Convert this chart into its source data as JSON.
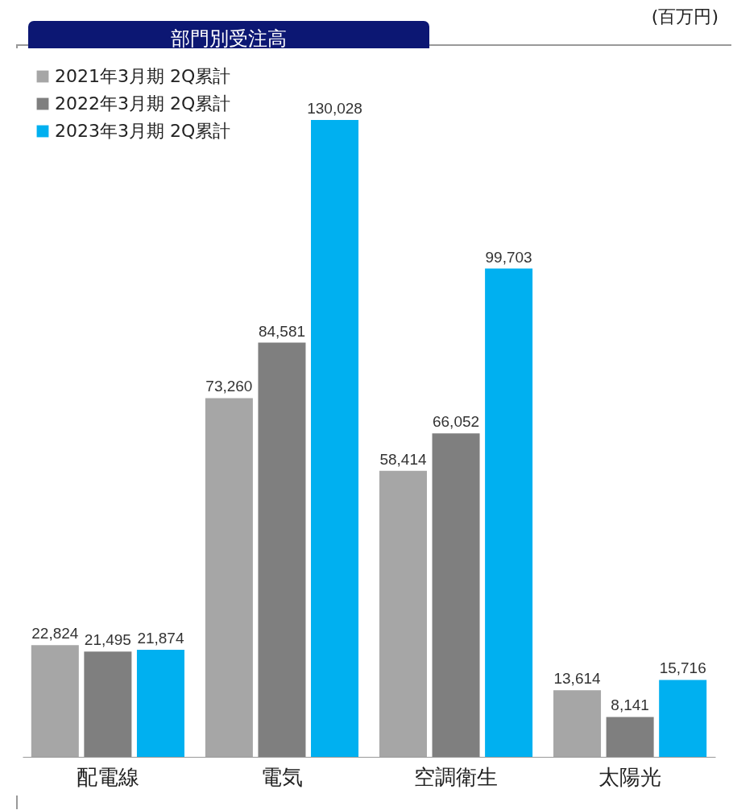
{
  "chart_data": {
    "type": "bar",
    "title": "部門別受注高",
    "annotations": [
      "(百万円)"
    ],
    "categories": [
      "配電線",
      "電気",
      "空調衛生",
      "太陽光"
    ],
    "series": [
      {
        "name": "2021年3月期 2Q累計",
        "color": "#a6a6a6",
        "values": [
          22824,
          73260,
          58414,
          13614
        ],
        "value_labels": [
          "22,824",
          "73,260",
          "58,414",
          "13,614"
        ]
      },
      {
        "name": "2022年3月期 2Q累計",
        "color": "#7f7f7f",
        "values": [
          21495,
          84581,
          66052,
          8141
        ],
        "value_labels": [
          "21,495",
          "84,581",
          "66,052",
          "8,141"
        ]
      },
      {
        "name": "2023年3月期 2Q累計",
        "color": "#00b0f0",
        "values": [
          21874,
          130028,
          99703,
          15716
        ],
        "value_labels": [
          "21,874",
          "130,028",
          "99,703",
          "15,716"
        ]
      }
    ],
    "legend": "top left"
  }
}
